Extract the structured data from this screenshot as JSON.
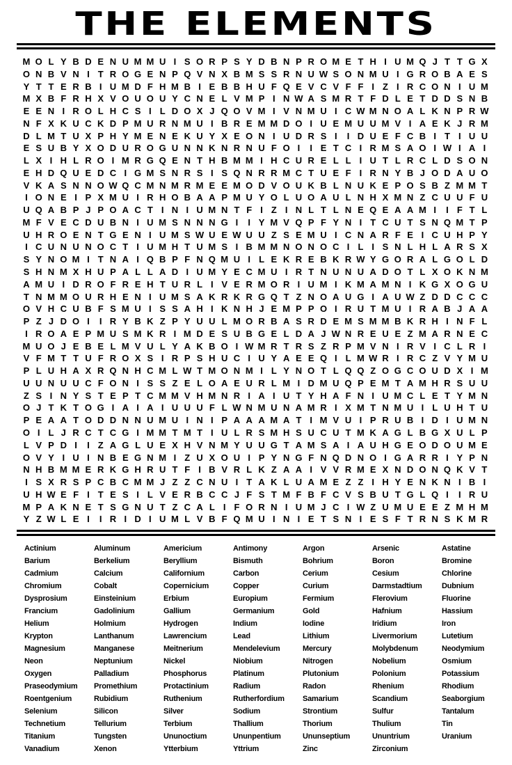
{
  "title": "THE ELEMENTS",
  "grid": {
    "rows": [
      "MOLYBDENUMMUISORPSYDBNPROMETHIUMQJTTGX",
      "ONBVNITROGENPQVNXBMSSRNUWSONMUIGROBAES",
      "YTTERBIUMDFHMBIEBBHUFQEVCVFFIZIRCONIUM",
      "MXBFRHXVOUOUYCNELVMPINWASMRTFDLETDDSNB",
      "EENIROLHCSILDOXJQOVMIVNMUICWMNOALKNPRW",
      "NFXKUCKDPMURNMUIBREMMDOIUEMUUMVIAEKJRM",
      "DLMTUXPHYMENEKUYXEONIUDRSIIDUEFCBITIUU",
      "ESUBYXODUROGUNNKNRNUFOIIETCIRMSAOIWIAI",
      "LXIHLROIMRGQENTHBMMIHCURELLIUTLRCLDSON",
      "EHDQUEDCIGMSNRSISQNRRMCTUEFIRNYBJODAUO",
      "VKASNNOWQCMNMRMEEMODVOUKBLNUKEPOSBZMMT",
      "IONEIPXMUIRHOBAAPMUYOLUOAULNHXMNZCUUFU",
      "UQABPJPOACTINIUMNTFIZINLTLNEQEAAMIIFTL",
      "MFVECDUBNIUMSNNNGIIYMVQPFYNITCUTSNQMTP",
      "UHROENTGENIUMSWUEWUUZSEMUICNARFEICUHPY",
      "ICUNUNOCTIUMHTUMSIBMMNONOCILISNLHLARSX",
      "SYNOMITNAIQBPFNQMUILEKREBKRWYGORALGOLD",
      "SHNMXHUPALLADIUMYECMUIRTNUNUADOTLXOKNM",
      "AMUIDROFREHTURLIVERMORIUMIKMAMNIKGXOGU",
      "TNMMOURHENIUMSAKRKRGQTZNOAUGIAUWZDDCCC",
      "OVHCUBFSMUISSAHIKNHJEMPPOIRUTMUIRABJAA",
      "PZJDOIIRYBKZPYUULMORBASRDEMSMMBKRHINFL",
      "IROAEPMUSMKRIMDESUBGELDAJWNREUEZMARNEC",
      "MUOJEBELMVULYAKBOIWMRTRSZRPMVNIRVICLRI",
      "VFMTTUFROXSIRPSHUCIUYAEEQILMWRIRCZVYMU",
      "PLUHAXRQNHCMLWTMONMILYNOTLQQZOGCOUDXIM",
      "UUNUUCFONISSZELOAEURLMIDMUQPEMTAMHRSUU",
      "ZSINYSTEPTCMMVHMNRIAIUTYHAFNIUMCLETYMN",
      "OJTKTOGIAIAIUUUFLWNMUNAMRIXMTNMUILUHTU",
      "PEAATODDNNUMUINIPAAAMATIMVUIPRUBIDIUMN",
      "OILJRCTCGIMMTMTIULRSMHSUCUTMKAGLBGXULP",
      "LVPDIIZAGLUEXHVNMYUUGTAMSAIAUHGEODOUME",
      "OVYIUINBEGNMIZUXOUIPYNGFNQDNOIGARRIYPN",
      "NHBMMERKGHRUTFIBVRLKZAAIVVRMEXNDONQKVT",
      "ISXRSPCBCMMJZZCNUITAKLUAMEZZIHYENKNIBI",
      "UHWEFITESILVERBCCJFSTMFBFCVSBUTGLQIIRU",
      "MPAKNETSGNUTZCALIFORNIUMJCIWZUMUEEZMHM",
      "YZWLEIIRIDIUMLVBFQMUINIETSNIESFTRNSKMR"
    ]
  },
  "words": [
    "Actinium",
    "Aluminum",
    "Americium",
    "Antimony",
    "Argon",
    "Arsenic",
    "Astatine",
    "Barium",
    "Berkelium",
    "Beryllium",
    "Bismuth",
    "Bohrium",
    "Boron",
    "Bromine",
    "Cadmium",
    "Calcium",
    "Californium",
    "Carbon",
    "Cerium",
    "Cesium",
    "Chlorine",
    "Chromium",
    "Cobalt",
    "Copernicium",
    "Copper",
    "Curium",
    "Darmstadtium",
    "Dubnium",
    "Dysprosium",
    "Einsteinium",
    "Erbium",
    "Europium",
    "Fermium",
    "Flerovium",
    "Fluorine",
    "Francium",
    "Gadolinium",
    "Gallium",
    "Germanium",
    "Gold",
    "Hafnium",
    "Hassium",
    "Helium",
    "Holmium",
    "Hydrogen",
    "Indium",
    "Iodine",
    "Iridium",
    "Iron",
    "Krypton",
    "Lanthanum",
    "Lawrencium",
    "Lead",
    "Lithium",
    "Livermorium",
    "Lutetium",
    "Magnesium",
    "Manganese",
    "Meitnerium",
    "Mendelevium",
    "Mercury",
    "Molybdenum",
    "Neodymium",
    "Neon",
    "Neptunium",
    "Nickel",
    "Niobium",
    "Nitrogen",
    "Nobelium",
    "Osmium",
    "Oxygen",
    "Palladium",
    "Phosphorus",
    "Platinum",
    "Plutonium",
    "Polonium",
    "Potassium",
    "Praseodymium",
    "Promethium",
    "Protactinium",
    "Radium",
    "Radon",
    "Rhenium",
    "Rhodium",
    "Roentgenium",
    "Rubidium",
    "Ruthenium",
    "Rutherfordium",
    "Samarium",
    "Scandium",
    "Seaborgium",
    "Selenium",
    "Silicon",
    "Silver",
    "Sodium",
    "Strontium",
    "Sulfur",
    "Tantalum",
    "Technetium",
    "Tellurium",
    "Terbium",
    "Thallium",
    "Thorium",
    "Thulium",
    "Tin",
    "Titanium",
    "Tungsten",
    "Ununoctium",
    "Ununpentium",
    "Ununseptium",
    "Ununtrium",
    "Uranium",
    "Vanadium",
    "Xenon",
    "Ytterbium",
    "Yttrium",
    "Zinc",
    "Zirconium"
  ]
}
